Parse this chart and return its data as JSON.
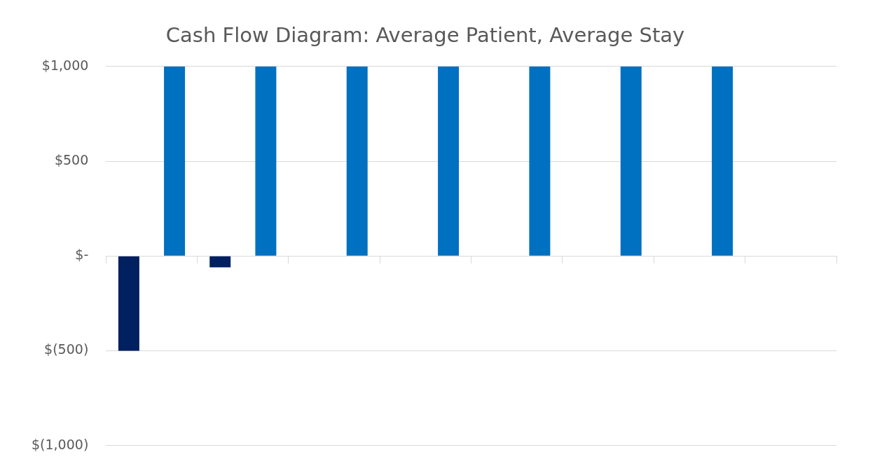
{
  "chart_data": {
    "type": "bar",
    "title": "Cash Flow Diagram: Average Patient, Average Stay",
    "categories": [
      null,
      null,
      null,
      null,
      null,
      null,
      null,
      null
    ],
    "series": [
      {
        "color": "#002060",
        "values": [
          -500,
          -60,
          0,
          0,
          0,
          0,
          0,
          0
        ]
      },
      {
        "color": "#0070c0",
        "values": [
          1000,
          1000,
          1000,
          1000,
          1000,
          1000,
          1000,
          0
        ]
      }
    ],
    "ylim": [
      -1000,
      1000
    ],
    "yticks": [
      {
        "value": -1000,
        "label": "$(1,000)"
      },
      {
        "value": -500,
        "label": "$(500)"
      },
      {
        "value": 0,
        "label": "$-"
      },
      {
        "value": 500,
        "label": "$500"
      },
      {
        "value": 1000,
        "label": "$1,000"
      }
    ],
    "grid": "y",
    "legend": false
  }
}
